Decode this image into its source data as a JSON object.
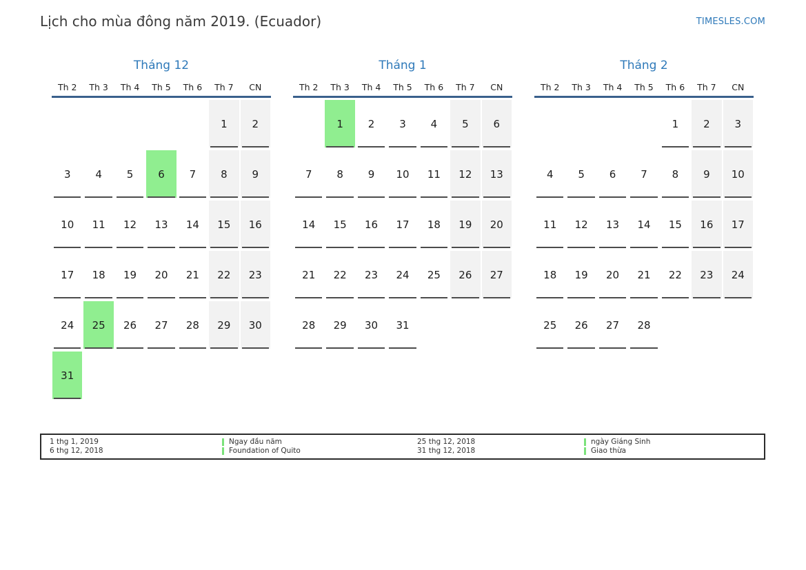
{
  "header": {
    "title": "Lịch cho mùa đông năm 2019. (Ecuador)",
    "brand": "TIMESLES.COM"
  },
  "weekdays": [
    "Th 2",
    "Th 3",
    "Th 4",
    "Th 5",
    "Th 6",
    "Th 7",
    "CN"
  ],
  "months": [
    {
      "name": "Tháng 12",
      "first_day_column": 5,
      "num_days": 31,
      "holidays": [
        6,
        25,
        31
      ]
    },
    {
      "name": "Tháng 1",
      "first_day_column": 1,
      "num_days": 31,
      "holidays": [
        1
      ]
    },
    {
      "name": "Tháng 2",
      "first_day_column": 4,
      "num_days": 28,
      "holidays": []
    }
  ],
  "colors": {
    "accent_blue": "#2e79b9",
    "header_line": "#39608c",
    "weekend_bg": "#f2f2f2",
    "holiday_bg": "#90ee90",
    "legend_marker": "#7be27b"
  },
  "legend": {
    "groups": [
      {
        "entries": [
          {
            "date": "1 thg 1, 2019",
            "label": "Ngay đầu năm"
          },
          {
            "date": "6 thg 12, 2018",
            "label": "Foundation of Quito"
          }
        ]
      },
      {
        "entries": [
          {
            "date": "25 thg 12, 2018",
            "label": "ngày Giáng Sinh"
          },
          {
            "date": "31 thg 12, 2018",
            "label": "Giao thừa"
          }
        ]
      }
    ]
  }
}
